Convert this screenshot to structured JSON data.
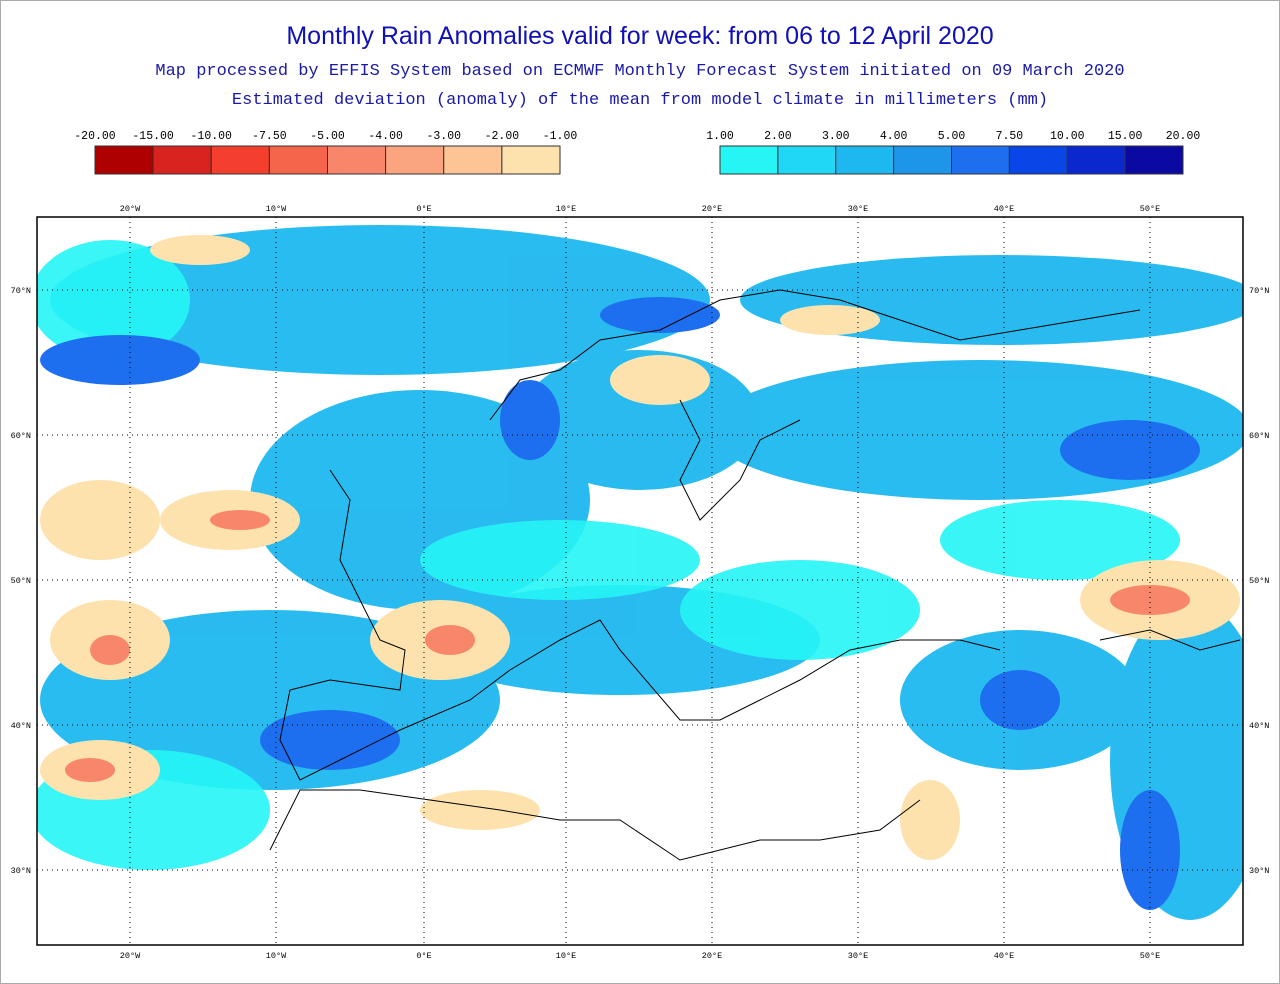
{
  "header": {
    "title": "Monthly Rain Anomalies valid for week: from 06 to 12 April 2020",
    "subtitle": "Map processed by EFFIS System based on ECMWF Monthly Forecast System initiated on 09 March 2020",
    "description": "Estimated deviation (anomaly) of the mean from model climate in millimeters (mm)"
  },
  "legend": {
    "negative": {
      "labels": [
        "-20.00",
        "-15.00",
        "-10.00",
        "-7.50",
        "-5.00",
        "-4.00",
        "-3.00",
        "-2.00",
        "-1.00"
      ],
      "colors": [
        "#ae0000",
        "#d8231f",
        "#f43f2e",
        "#f5654c",
        "#f8866a",
        "#fba580",
        "#fdc596",
        "#fde2ae"
      ]
    },
    "positive": {
      "labels": [
        "1.00",
        "2.00",
        "3.00",
        "4.00",
        "5.00",
        "7.50",
        "10.00",
        "15.00",
        "20.00"
      ],
      "colors": [
        "#25f5f5",
        "#1fd8f5",
        "#1eb8f0",
        "#1d96ea",
        "#1e6ff0",
        "#0a45e8",
        "#0b28cf",
        "#0a0aa2"
      ]
    }
  },
  "map": {
    "longitude_labels": [
      "20°W",
      "10°W",
      "0°E",
      "10°E",
      "20°E",
      "30°E",
      "40°E",
      "50°E"
    ],
    "latitude_labels": [
      "70°N",
      "60°N",
      "50°N",
      "40°N",
      "30°N"
    ]
  }
}
